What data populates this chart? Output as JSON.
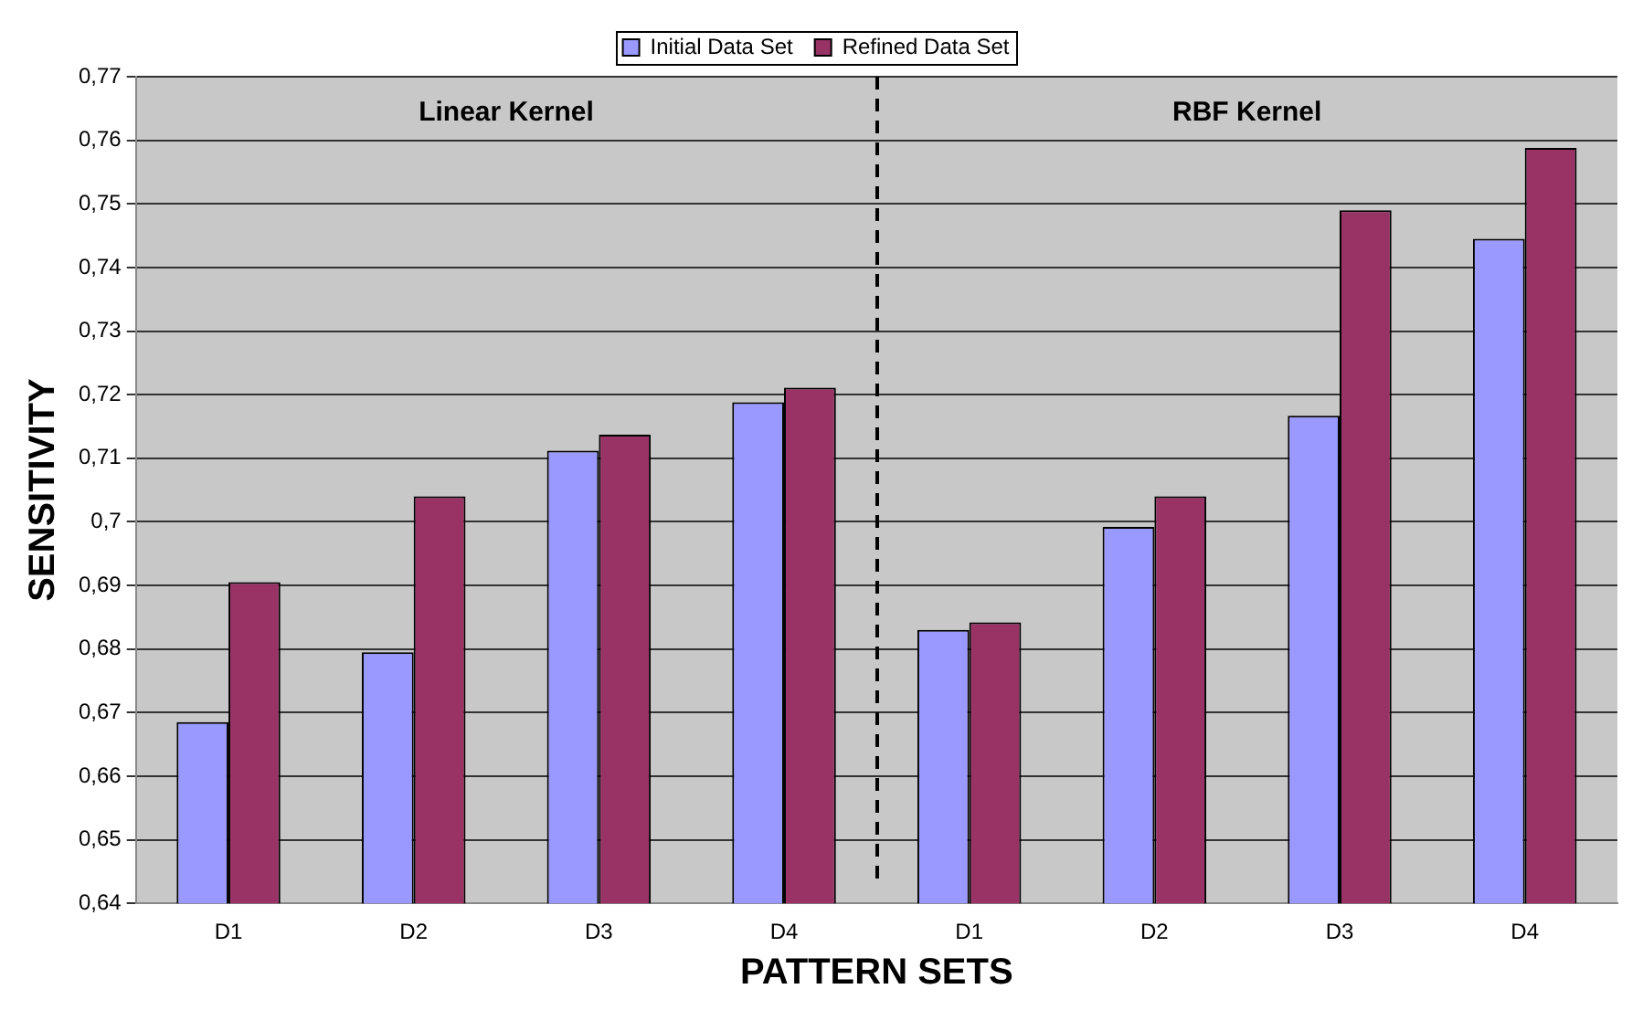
{
  "chart_data": {
    "type": "bar",
    "xlabel": "PATTERN SETS",
    "ylabel": "SENSITIVITY",
    "categories": [
      "D1",
      "D2",
      "D3",
      "D4",
      "D1",
      "D2",
      "D3",
      "D4"
    ],
    "series": [
      {
        "name": "Initial Data Set",
        "color": "#9999ff",
        "values": [
          0.6685,
          0.6795,
          0.7112,
          0.7188,
          0.683,
          0.6992,
          0.7167,
          0.7445
        ]
      },
      {
        "name": "Refined Data Set",
        "color": "#993366",
        "values": [
          0.6905,
          0.704,
          0.7137,
          0.7211,
          0.6842,
          0.704,
          0.749,
          0.7588
        ]
      }
    ],
    "ylim": [
      0.64,
      0.77
    ],
    "yticks": [
      {
        "value": 0.64,
        "label": "0,64"
      },
      {
        "value": 0.65,
        "label": "0,65"
      },
      {
        "value": 0.66,
        "label": "0,66"
      },
      {
        "value": 0.67,
        "label": "0,67"
      },
      {
        "value": 0.68,
        "label": "0,68"
      },
      {
        "value": 0.69,
        "label": "0,69"
      },
      {
        "value": 0.7,
        "label": "0,7"
      },
      {
        "value": 0.71,
        "label": "0,71"
      },
      {
        "value": 0.72,
        "label": "0,72"
      },
      {
        "value": 0.73,
        "label": "0,73"
      },
      {
        "value": 0.74,
        "label": "0,74"
      },
      {
        "value": 0.75,
        "label": "0,75"
      },
      {
        "value": 0.76,
        "label": "0,76"
      },
      {
        "value": 0.77,
        "label": "0,77"
      }
    ],
    "annotations": [
      "Linear Kernel",
      "RBF Kernel"
    ],
    "grid": "y",
    "legend": "top"
  }
}
